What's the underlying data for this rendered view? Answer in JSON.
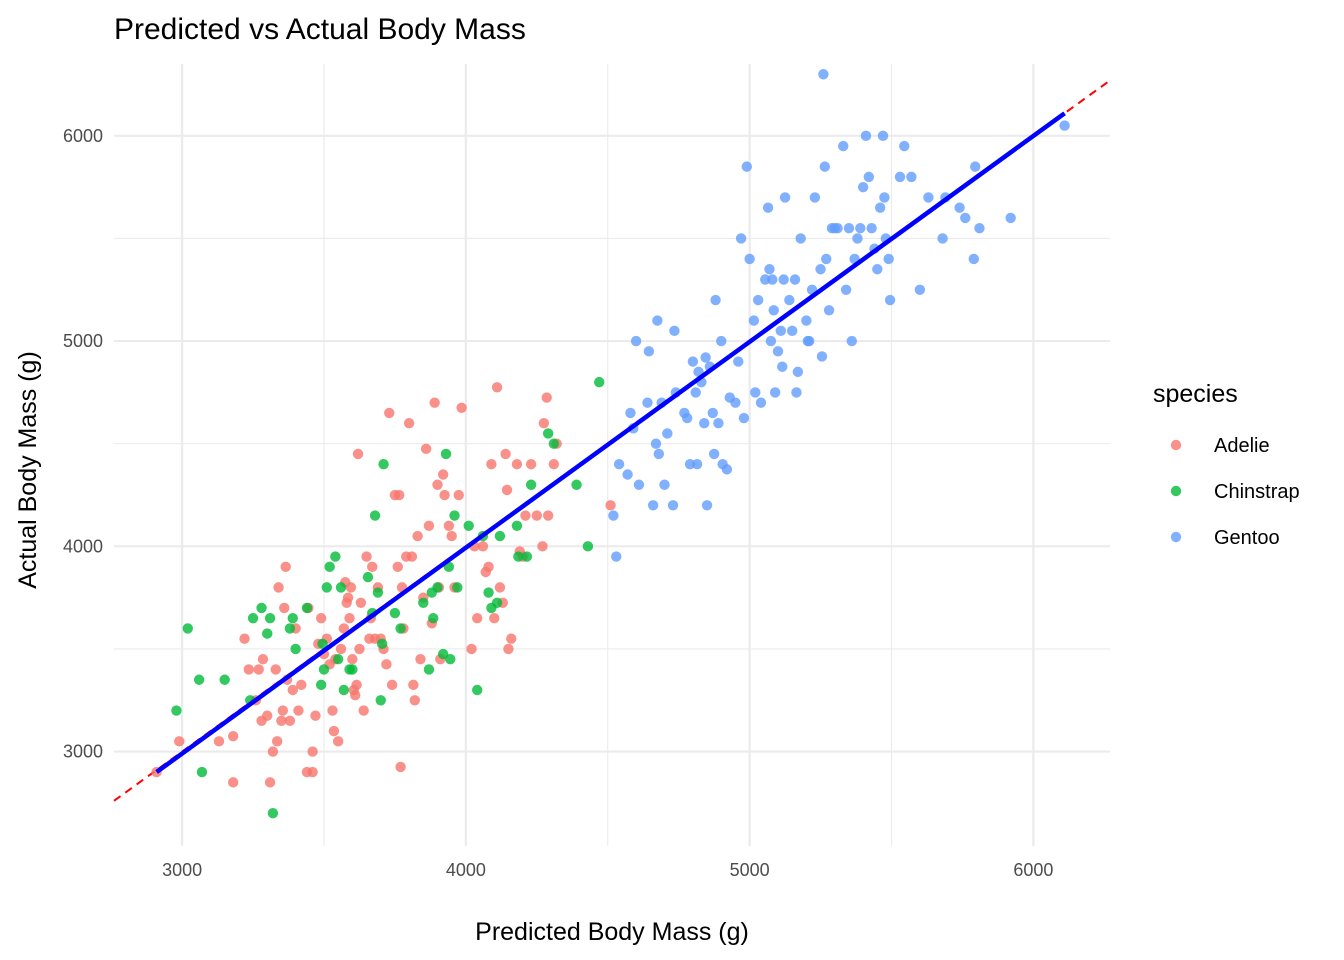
{
  "chart_data": {
    "type": "scatter",
    "title": "Predicted vs Actual Body Mass",
    "xlabel": "Predicted Body Mass (g)",
    "ylabel": "Actual Body Mass (g)",
    "xlim": [
      2760,
      6270
    ],
    "ylim": [
      2540,
      6350
    ],
    "x_ticks": [
      3000,
      4000,
      5000,
      6000
    ],
    "y_ticks": [
      3000,
      4000,
      5000,
      6000
    ],
    "grid": true,
    "legend": {
      "title": "species",
      "position": "right"
    },
    "reference_line": {
      "type": "y=x",
      "color": "#ff0000",
      "style": "dashed"
    },
    "fit_line": {
      "color": "#0000ff",
      "x": [
        2910,
        6110
      ],
      "y": [
        2900,
        6110
      ]
    },
    "series": [
      {
        "name": "Adelie",
        "color": "#F8766D",
        "points": [
          [
            2910,
            2900
          ],
          [
            2990,
            3050
          ],
          [
            3130,
            3050
          ],
          [
            3180,
            3075
          ],
          [
            3180,
            2850
          ],
          [
            3220,
            3550
          ],
          [
            3235,
            3400
          ],
          [
            3260,
            3250
          ],
          [
            3270,
            3400
          ],
          [
            3280,
            3150
          ],
          [
            3285,
            3450
          ],
          [
            3300,
            3175
          ],
          [
            3310,
            2850
          ],
          [
            3320,
            3000
          ],
          [
            3330,
            3400
          ],
          [
            3335,
            3050
          ],
          [
            3340,
            3800
          ],
          [
            3350,
            3150
          ],
          [
            3355,
            3200
          ],
          [
            3360,
            3700
          ],
          [
            3365,
            3900
          ],
          [
            3370,
            3350
          ],
          [
            3380,
            3150
          ],
          [
            3390,
            3300
          ],
          [
            3400,
            3600
          ],
          [
            3410,
            3200
          ],
          [
            3420,
            3325
          ],
          [
            3440,
            2900
          ],
          [
            3445,
            3700
          ],
          [
            3460,
            2900
          ],
          [
            3460,
            3000
          ],
          [
            3470,
            3175
          ],
          [
            3480,
            3525
          ],
          [
            3490,
            3650
          ],
          [
            3500,
            3475
          ],
          [
            3510,
            3550
          ],
          [
            3520,
            3425
          ],
          [
            3530,
            3200
          ],
          [
            3535,
            3100
          ],
          [
            3540,
            3450
          ],
          [
            3550,
            3050
          ],
          [
            3560,
            3500
          ],
          [
            3570,
            3600
          ],
          [
            3575,
            3825
          ],
          [
            3580,
            3725
          ],
          [
            3585,
            3750
          ],
          [
            3590,
            3650
          ],
          [
            3595,
            3800
          ],
          [
            3600,
            3450
          ],
          [
            3605,
            3300
          ],
          [
            3610,
            3275
          ],
          [
            3615,
            3325
          ],
          [
            3620,
            4450
          ],
          [
            3625,
            3500
          ],
          [
            3630,
            3725
          ],
          [
            3640,
            3200
          ],
          [
            3650,
            3950
          ],
          [
            3660,
            3550
          ],
          [
            3665,
            3650
          ],
          [
            3670,
            3900
          ],
          [
            3680,
            3550
          ],
          [
            3690,
            3800
          ],
          [
            3700,
            3550
          ],
          [
            3710,
            3500
          ],
          [
            3720,
            3425
          ],
          [
            3730,
            4650
          ],
          [
            3740,
            3325
          ],
          [
            3750,
            4250
          ],
          [
            3760,
            3900
          ],
          [
            3765,
            4250
          ],
          [
            3770,
            2925
          ],
          [
            3775,
            3800
          ],
          [
            3780,
            3600
          ],
          [
            3790,
            3950
          ],
          [
            3800,
            4600
          ],
          [
            3810,
            3950
          ],
          [
            3815,
            3325
          ],
          [
            3820,
            3250
          ],
          [
            3830,
            4050
          ],
          [
            3840,
            3450
          ],
          [
            3850,
            3750
          ],
          [
            3860,
            4475
          ],
          [
            3870,
            4100
          ],
          [
            3880,
            3625
          ],
          [
            3890,
            4700
          ],
          [
            3900,
            4300
          ],
          [
            3905,
            3800
          ],
          [
            3910,
            3450
          ],
          [
            3920,
            4350
          ],
          [
            3925,
            4250
          ],
          [
            3940,
            4100
          ],
          [
            3950,
            4050
          ],
          [
            3960,
            3800
          ],
          [
            3975,
            4250
          ],
          [
            3985,
            4675
          ],
          [
            4020,
            3500
          ],
          [
            4030,
            4000
          ],
          [
            4040,
            3650
          ],
          [
            4060,
            4000
          ],
          [
            4070,
            3875
          ],
          [
            4080,
            3900
          ],
          [
            4090,
            4400
          ],
          [
            4100,
            3650
          ],
          [
            4110,
            4775
          ],
          [
            4120,
            3800
          ],
          [
            4130,
            3725
          ],
          [
            4140,
            4450
          ],
          [
            4145,
            4275
          ],
          [
            4150,
            3500
          ],
          [
            4160,
            3550
          ],
          [
            4180,
            4400
          ],
          [
            4190,
            3975
          ],
          [
            4200,
            3950
          ],
          [
            4210,
            4150
          ],
          [
            4230,
            4400
          ],
          [
            4250,
            4150
          ],
          [
            4270,
            4000
          ],
          [
            4275,
            4600
          ],
          [
            4285,
            4725
          ],
          [
            4290,
            4150
          ],
          [
            4310,
            4400
          ],
          [
            4320,
            4500
          ],
          [
            4510,
            4200
          ]
        ]
      },
      {
        "name": "Chinstrap",
        "color": "#00BA38",
        "points": [
          [
            2980,
            3200
          ],
          [
            3020,
            3600
          ],
          [
            3060,
            3350
          ],
          [
            3070,
            2900
          ],
          [
            3150,
            3350
          ],
          [
            3240,
            3250
          ],
          [
            3250,
            3650
          ],
          [
            3280,
            3700
          ],
          [
            3300,
            3575
          ],
          [
            3310,
            3650
          ],
          [
            3320,
            2700
          ],
          [
            3380,
            3600
          ],
          [
            3390,
            3650
          ],
          [
            3400,
            3500
          ],
          [
            3440,
            3700
          ],
          [
            3490,
            3325
          ],
          [
            3495,
            3525
          ],
          [
            3500,
            3400
          ],
          [
            3510,
            3800
          ],
          [
            3520,
            3900
          ],
          [
            3540,
            3950
          ],
          [
            3550,
            3450
          ],
          [
            3560,
            3800
          ],
          [
            3570,
            3300
          ],
          [
            3590,
            3400
          ],
          [
            3600,
            3400
          ],
          [
            3655,
            3850
          ],
          [
            3670,
            3675
          ],
          [
            3680,
            4150
          ],
          [
            3690,
            3775
          ],
          [
            3700,
            3250
          ],
          [
            3705,
            3525
          ],
          [
            3710,
            4400
          ],
          [
            3750,
            3675
          ],
          [
            3770,
            3600
          ],
          [
            3850,
            3725
          ],
          [
            3870,
            3400
          ],
          [
            3880,
            3775
          ],
          [
            3885,
            3650
          ],
          [
            3900,
            3800
          ],
          [
            3920,
            3475
          ],
          [
            3930,
            4450
          ],
          [
            3940,
            3900
          ],
          [
            3945,
            3450
          ],
          [
            3960,
            4150
          ],
          [
            3970,
            3800
          ],
          [
            4010,
            4100
          ],
          [
            4040,
            3300
          ],
          [
            4060,
            4050
          ],
          [
            4080,
            3775
          ],
          [
            4090,
            3700
          ],
          [
            4110,
            3725
          ],
          [
            4120,
            4050
          ],
          [
            4180,
            4100
          ],
          [
            4185,
            3950
          ],
          [
            4215,
            3950
          ],
          [
            4230,
            4300
          ],
          [
            4290,
            4550
          ],
          [
            4310,
            4500
          ],
          [
            4390,
            4300
          ],
          [
            4430,
            4000
          ],
          [
            4470,
            4800
          ]
        ]
      },
      {
        "name": "Gentoo",
        "color": "#619CFF",
        "points": [
          [
            4520,
            4150
          ],
          [
            4530,
            3950
          ],
          [
            4540,
            4400
          ],
          [
            4570,
            4350
          ],
          [
            4580,
            4650
          ],
          [
            4590,
            4575
          ],
          [
            4600,
            5000
          ],
          [
            4610,
            4300
          ],
          [
            4640,
            4700
          ],
          [
            4645,
            4950
          ],
          [
            4660,
            4200
          ],
          [
            4670,
            4500
          ],
          [
            4675,
            5100
          ],
          [
            4680,
            4450
          ],
          [
            4690,
            4700
          ],
          [
            4700,
            4300
          ],
          [
            4710,
            4550
          ],
          [
            4730,
            4200
          ],
          [
            4735,
            5050
          ],
          [
            4740,
            4750
          ],
          [
            4770,
            4650
          ],
          [
            4780,
            4625
          ],
          [
            4790,
            4400
          ],
          [
            4800,
            4900
          ],
          [
            4810,
            4750
          ],
          [
            4815,
            4400
          ],
          [
            4820,
            4850
          ],
          [
            4830,
            4800
          ],
          [
            4840,
            4600
          ],
          [
            4845,
            4920
          ],
          [
            4850,
            4200
          ],
          [
            4860,
            4875
          ],
          [
            4870,
            4650
          ],
          [
            4875,
            4450
          ],
          [
            4880,
            5200
          ],
          [
            4890,
            4600
          ],
          [
            4900,
            5000
          ],
          [
            4905,
            4400
          ],
          [
            4920,
            4375
          ],
          [
            4930,
            4725
          ],
          [
            4950,
            4700
          ],
          [
            4960,
            4900
          ],
          [
            4970,
            5500
          ],
          [
            4980,
            4625
          ],
          [
            4990,
            5850
          ],
          [
            5000,
            5400
          ],
          [
            5015,
            5100
          ],
          [
            5020,
            4750
          ],
          [
            5030,
            5200
          ],
          [
            5040,
            4700
          ],
          [
            5055,
            5300
          ],
          [
            5065,
            5650
          ],
          [
            5070,
            5350
          ],
          [
            5075,
            5000
          ],
          [
            5080,
            5300
          ],
          [
            5085,
            5150
          ],
          [
            5090,
            4750
          ],
          [
            5100,
            4950
          ],
          [
            5110,
            5050
          ],
          [
            5115,
            4875
          ],
          [
            5120,
            5300
          ],
          [
            5125,
            5700
          ],
          [
            5140,
            5200
          ],
          [
            5150,
            5050
          ],
          [
            5160,
            5300
          ],
          [
            5165,
            4750
          ],
          [
            5170,
            4850
          ],
          [
            5180,
            5500
          ],
          [
            5200,
            5100
          ],
          [
            5205,
            5000
          ],
          [
            5210,
            5000
          ],
          [
            5220,
            5250
          ],
          [
            5230,
            5700
          ],
          [
            5250,
            5350
          ],
          [
            5255,
            4925
          ],
          [
            5260,
            6300
          ],
          [
            5265,
            5850
          ],
          [
            5270,
            5400
          ],
          [
            5280,
            5150
          ],
          [
            5290,
            5550
          ],
          [
            5300,
            5550
          ],
          [
            5310,
            5550
          ],
          [
            5330,
            5950
          ],
          [
            5340,
            5250
          ],
          [
            5350,
            5550
          ],
          [
            5360,
            5000
          ],
          [
            5370,
            5400
          ],
          [
            5380,
            5500
          ],
          [
            5390,
            5550
          ],
          [
            5400,
            5750
          ],
          [
            5410,
            6000
          ],
          [
            5420,
            5800
          ],
          [
            5430,
            5550
          ],
          [
            5440,
            5450
          ],
          [
            5450,
            5350
          ],
          [
            5460,
            5650
          ],
          [
            5470,
            6000
          ],
          [
            5475,
            5700
          ],
          [
            5480,
            5500
          ],
          [
            5490,
            5400
          ],
          [
            5495,
            5200
          ],
          [
            5530,
            5800
          ],
          [
            5545,
            5950
          ],
          [
            5570,
            5800
          ],
          [
            5600,
            5250
          ],
          [
            5630,
            5700
          ],
          [
            5680,
            5500
          ],
          [
            5690,
            5700
          ],
          [
            5740,
            5650
          ],
          [
            5760,
            5600
          ],
          [
            5790,
            5400
          ],
          [
            5795,
            5850
          ],
          [
            5810,
            5550
          ],
          [
            5920,
            5600
          ],
          [
            6110,
            6050
          ]
        ]
      }
    ]
  }
}
